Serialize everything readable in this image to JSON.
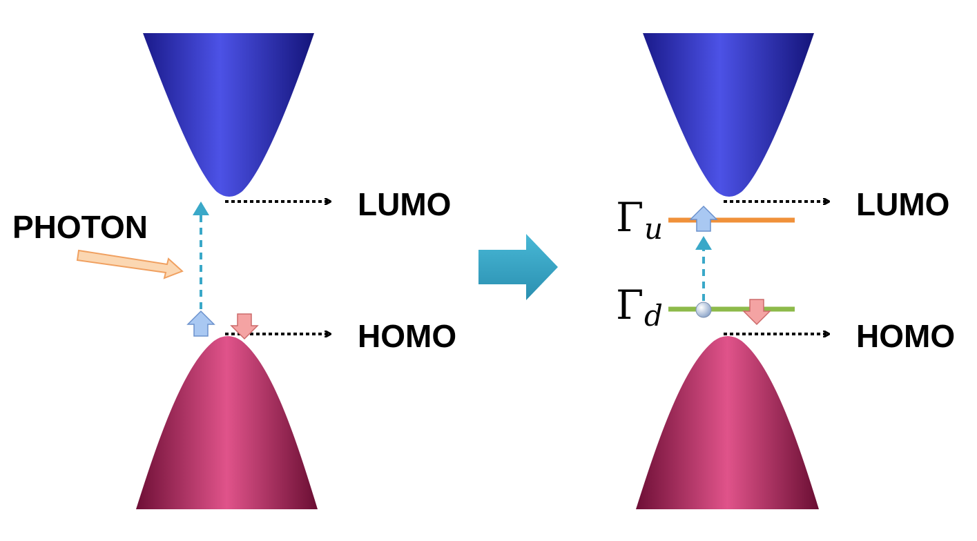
{
  "left_panel": {
    "photon_label": "PHOTON",
    "lumo_label": "LUMO",
    "homo_label": "HOMO"
  },
  "right_panel": {
    "lumo_label": "LUMO",
    "homo_label": "HOMO",
    "upper_level_symbol": "Γ",
    "upper_level_subscript": "u",
    "lower_level_symbol": "Γ",
    "lower_level_subscript": "d"
  },
  "colors": {
    "conduction_band": "#3a3fd0",
    "valence_band": "#c23370",
    "transition_arrow": "#3aa8c8",
    "photon_arrow": "#f7c79a",
    "spin_up": "#a9c8f2",
    "spin_down": "#f4a3a3",
    "upper_level": "#f0913a",
    "lower_level": "#8dba4a",
    "process_arrow": "#2f9fc0"
  }
}
